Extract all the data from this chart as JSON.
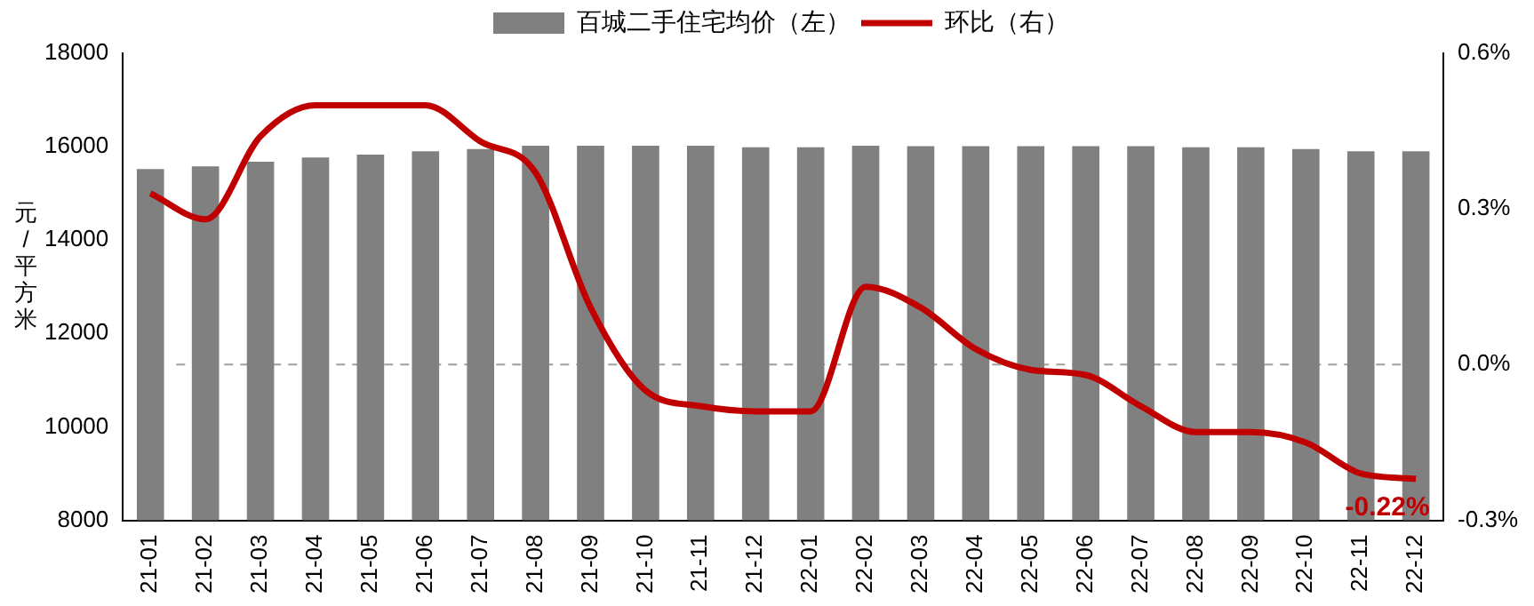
{
  "chart_data": {
    "type": "bar",
    "ylabel": "元/平方米",
    "legend": "top",
    "categories": [
      "21-01",
      "21-02",
      "21-03",
      "21-04",
      "21-05",
      "21-06",
      "21-07",
      "21-08",
      "21-09",
      "21-10",
      "21-11",
      "21-12",
      "22-01",
      "22-02",
      "22-03",
      "22-04",
      "22-05",
      "22-06",
      "22-07",
      "22-08",
      "22-09",
      "22-10",
      "22-11",
      "22-12"
    ],
    "series": [
      {
        "name": "百城二手住宅均价（左）",
        "color": "#808080",
        "values": [
          15520,
          15580,
          15680,
          15770,
          15830,
          15900,
          15950,
          16020,
          16020,
          16020,
          16020,
          15990,
          15990,
          16020,
          16010,
          16010,
          16010,
          16010,
          16010,
          15990,
          15990,
          15950,
          15900,
          15900
        ]
      },
      {
        "type": "line",
        "name": "环比（右）",
        "color": "#c00000",
        "axis": "y2",
        "values": [
          0.33,
          0.28,
          0.44,
          0.5,
          0.5,
          0.5,
          0.43,
          0.37,
          0.11,
          -0.05,
          -0.08,
          -0.09,
          -0.09,
          0.15,
          0.11,
          0.03,
          -0.01,
          -0.02,
          -0.08,
          -0.13,
          -0.13,
          -0.15,
          -0.21,
          -0.22
        ],
        "value_labels": [
          null,
          null,
          null,
          null,
          null,
          null,
          null,
          null,
          null,
          null,
          null,
          null,
          null,
          null,
          null,
          null,
          null,
          null,
          null,
          null,
          null,
          null,
          null,
          "-0.22%"
        ]
      }
    ],
    "ylim": [
      8000,
      18000
    ],
    "yticks": [
      8000,
      10000,
      12000,
      14000,
      16000,
      18000
    ],
    "y2lim": [
      -0.3,
      0.6
    ],
    "y2ticks": [
      {
        "value": -0.3,
        "label": "-0.3%"
      },
      {
        "value": 0,
        "label": "0.0%"
      },
      {
        "value": 0.3,
        "label": "0.3%"
      },
      {
        "value": 0.6,
        "label": "0.6%"
      }
    ],
    "ref_lines": [
      {
        "axis": "y2",
        "value": 0,
        "color": "#a0a0a0",
        "line_style": "dashed"
      }
    ]
  }
}
